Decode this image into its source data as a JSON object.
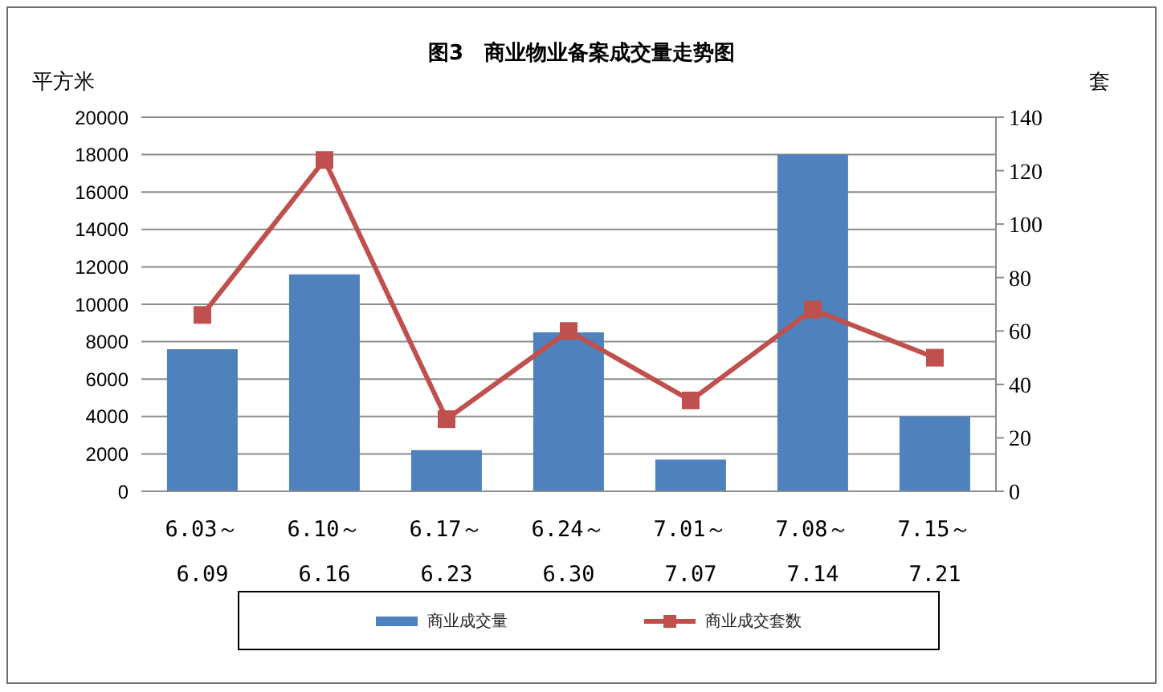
{
  "chart_data": {
    "type": "bar",
    "title": "图3　商业物业备案成交量走势图",
    "ylabel": "平方米",
    "y2label": "套",
    "categories": [
      "6.03～\n6.09",
      "6.10～\n6.16",
      "6.17～\n6.23",
      "6.24～\n6.30",
      "7.01～\n7.07",
      "7.08～\n7.14",
      "7.15～\n7.21"
    ],
    "series": [
      {
        "name": "商业成交量",
        "color": "#4f81bd",
        "values": [
          7600,
          11600,
          2200,
          8500,
          1700,
          18000,
          4000
        ]
      },
      {
        "name": "商业成交套数",
        "type": "line",
        "axis": "y2",
        "color": "#c0504d",
        "marker": "square",
        "line_style": "solid",
        "values": [
          66,
          124,
          27,
          60,
          34,
          68,
          50
        ]
      }
    ],
    "ylim": [
      0,
      20000
    ],
    "yticks": [
      0,
      2000,
      4000,
      6000,
      8000,
      10000,
      12000,
      14000,
      16000,
      18000,
      20000
    ],
    "y2lim": [
      0,
      140
    ],
    "y2ticks": [
      0,
      20,
      40,
      60,
      80,
      100,
      120,
      140
    ],
    "grid": "y",
    "legend": "bottom"
  }
}
